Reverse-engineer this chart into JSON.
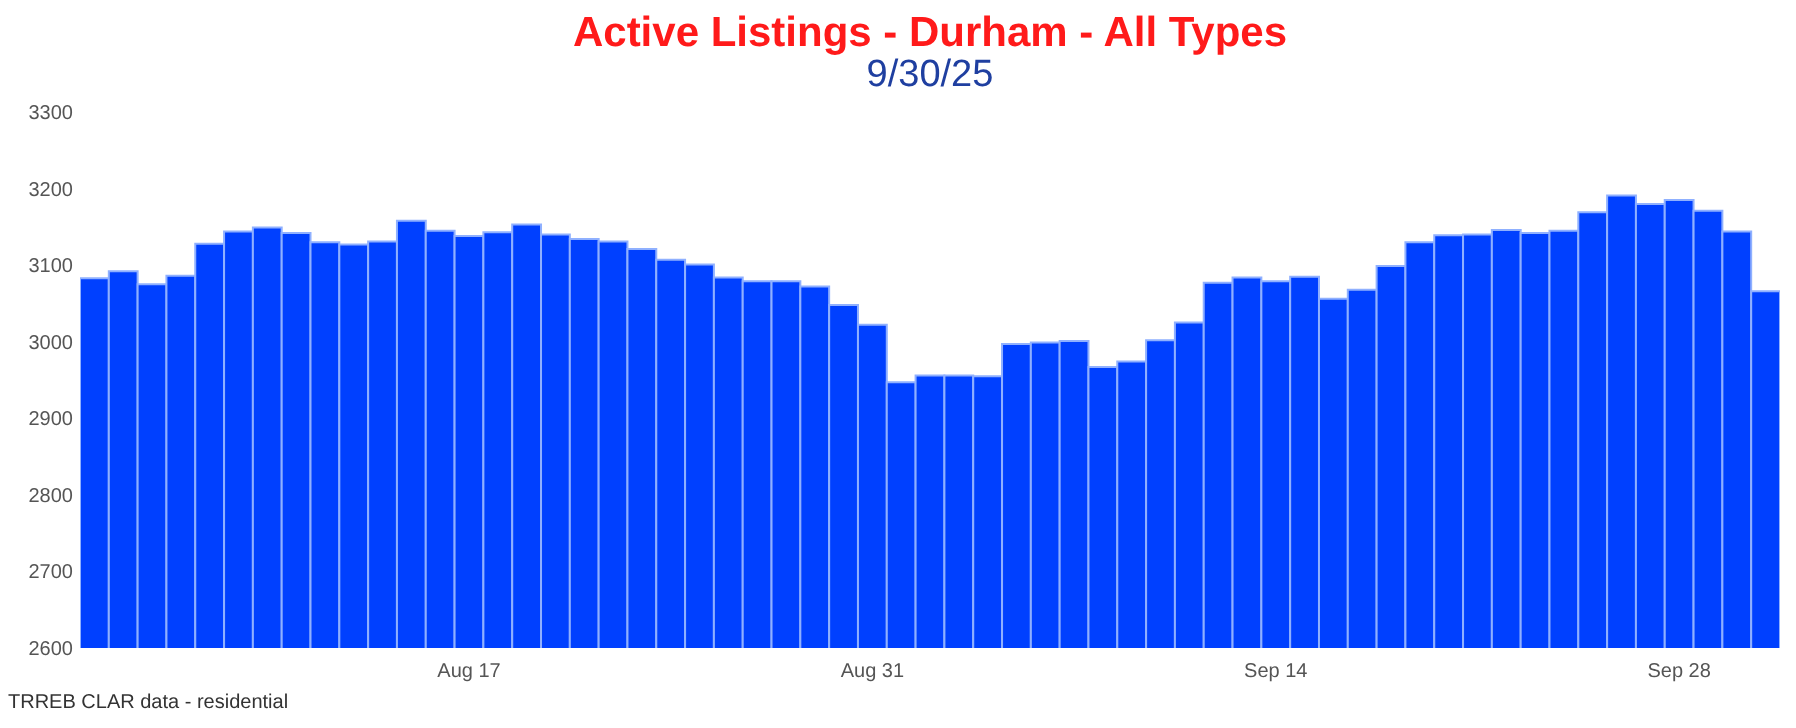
{
  "chart_data": {
    "type": "bar",
    "title": "Active Listings - Durham - All Types",
    "subtitle": "9/30/25",
    "categories": [
      null,
      null,
      null,
      null,
      null,
      null,
      null,
      null,
      null,
      null,
      null,
      null,
      null,
      "Aug 17",
      null,
      null,
      null,
      null,
      null,
      null,
      null,
      null,
      null,
      null,
      null,
      null,
      null,
      "Aug 31",
      null,
      null,
      null,
      null,
      null,
      null,
      null,
      null,
      null,
      null,
      null,
      null,
      null,
      "Sep 14",
      null,
      null,
      null,
      null,
      null,
      null,
      null,
      null,
      null,
      null,
      null,
      null,
      null,
      "Sep 28",
      null,
      null,
      null
    ],
    "values": [
      3083,
      3092,
      3075,
      3086,
      3128,
      3144,
      3149,
      3142,
      3130,
      3127,
      3131,
      3158,
      3145,
      3138,
      3143,
      3153,
      3140,
      3134,
      3131,
      3121,
      3107,
      3101,
      3084,
      3079,
      3079,
      3072,
      3048,
      3022,
      2947,
      2956,
      2956,
      2955,
      2997,
      2999,
      3001,
      2967,
      2974,
      3002,
      3025,
      3077,
      3084,
      3079,
      3085,
      3056,
      3068,
      3099,
      3130,
      3139,
      3140,
      3146,
      3142,
      3145,
      3169,
      3191,
      3180,
      3185,
      3171,
      3144,
      3066
    ],
    "color": "#0040ff",
    "ylim": [
      2600,
      3300
    ],
    "yticks": [
      2600,
      2700,
      2800,
      2900,
      3000,
      3100,
      3200,
      3300
    ],
    "annotations": [
      "TRREB CLAR data - residential"
    ]
  }
}
